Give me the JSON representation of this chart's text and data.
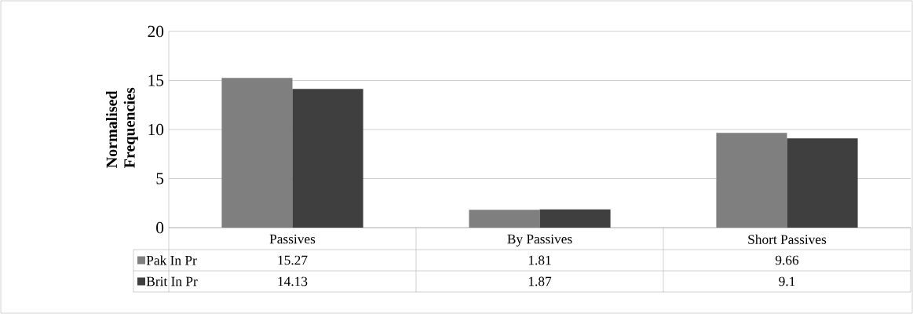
{
  "chart_data": {
    "type": "bar",
    "ylabel": "Normalised Frequencies",
    "categories": [
      "Passives",
      "By Passives",
      "Short Passives"
    ],
    "series": [
      {
        "name": "Pak In Pr",
        "color": "#7f7f7f",
        "values": [
          15.27,
          1.81,
          9.66
        ],
        "value_labels": [
          "15.27",
          "1.81",
          "9.66"
        ]
      },
      {
        "name": "Brit In Pr",
        "color": "#3f3f3f",
        "values": [
          14.13,
          1.87,
          9.1
        ],
        "value_labels": [
          "14.13",
          "1.87",
          "9.1"
        ]
      }
    ],
    "ylim": [
      0,
      20
    ],
    "yticks": [
      0,
      5,
      10,
      15,
      20
    ],
    "grid": "y",
    "legend": "bottom"
  }
}
